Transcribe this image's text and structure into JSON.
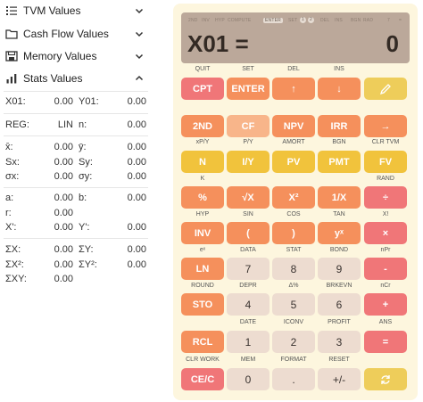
{
  "sidebar": {
    "sections": [
      {
        "id": "tvm",
        "title": "TVM Values",
        "icon": "chevron-down-icon",
        "expanded": false
      },
      {
        "id": "cashflow",
        "title": "Cash Flow Values",
        "icon": "chevron-down-icon",
        "expanded": false
      },
      {
        "id": "memory",
        "title": "Memory Values",
        "icon": "chevron-down-icon",
        "expanded": false
      },
      {
        "id": "stats",
        "title": "Stats Values",
        "icon": "chevron-up-icon",
        "expanded": true
      }
    ],
    "stats": {
      "x01": {
        "label": "X01:",
        "value": "0.00"
      },
      "y01": {
        "label": "Y01:",
        "value": "0.00"
      },
      "reg": {
        "label": "REG:",
        "value": "LIN"
      },
      "n": {
        "label": "n:",
        "value": "0.00"
      },
      "xbar": {
        "label": "x̄:",
        "value": "0.00"
      },
      "ybar": {
        "label": "ȳ:",
        "value": "0.00"
      },
      "sx": {
        "label": "Sx:",
        "value": "0.00"
      },
      "sy": {
        "label": "Sy:",
        "value": "0.00"
      },
      "sigx": {
        "label": "σx:",
        "value": "0.00"
      },
      "sigy": {
        "label": "σy:",
        "value": "0.00"
      },
      "a": {
        "label": "a:",
        "value": "0.00"
      },
      "b": {
        "label": "b:",
        "value": "0.00"
      },
      "r": {
        "label": "r:",
        "value": "0.00"
      },
      "xprime": {
        "label": "X':",
        "value": "0.00"
      },
      "yprime": {
        "label": "Y':",
        "value": "0.00"
      },
      "sumx": {
        "label": "ΣX:",
        "value": "0.00"
      },
      "sumy": {
        "label": "ΣY:",
        "value": "0.00"
      },
      "sumx2": {
        "label": "ΣX²:",
        "value": "0.00"
      },
      "sumy2": {
        "label": "ΣY²:",
        "value": "0.00"
      },
      "sumxy": {
        "label": "ΣXY:",
        "value": "0.00"
      }
    }
  },
  "calculator": {
    "indicators": [
      "2ND",
      "INV",
      "HYP",
      "COMPUTE",
      "ENTER",
      "SET",
      "1",
      "2",
      "DEL",
      "INS",
      "BGN",
      "RAD",
      "7",
      "="
    ],
    "active_indicator": "ENTER",
    "display": {
      "label": "X01 =",
      "value": "0"
    },
    "rows": [
      {
        "labels": [
          "QUIT",
          "SET",
          "DEL",
          "INS",
          ""
        ],
        "keys": [
          {
            "t": "CPT",
            "c": "pink"
          },
          {
            "t": "ENTER",
            "c": "orange"
          },
          {
            "t": "↑",
            "c": "orange"
          },
          {
            "t": "↓",
            "c": "orange"
          },
          {
            "t": "",
            "c": "mustard",
            "icon": "pen-icon"
          }
        ]
      },
      {
        "labels": [
          "",
          "",
          "",
          "",
          ""
        ],
        "keys": [
          {
            "t": "2ND",
            "c": "orange"
          },
          {
            "t": "CF",
            "c": "peach"
          },
          {
            "t": "NPV",
            "c": "orange"
          },
          {
            "t": "IRR",
            "c": "orange"
          },
          {
            "t": "→",
            "c": "orange"
          }
        ]
      },
      {
        "labels": [
          "xP/Y",
          "P/Y",
          "AMORT",
          "BGN",
          "CLR TVM"
        ],
        "keys": [
          {
            "t": "N",
            "c": "yellow"
          },
          {
            "t": "I/Y",
            "c": "yellow"
          },
          {
            "t": "PV",
            "c": "yellow"
          },
          {
            "t": "PMT",
            "c": "yellow"
          },
          {
            "t": "FV",
            "c": "yellow"
          }
        ]
      },
      {
        "labels": [
          "K",
          "",
          "",
          "",
          "RAND"
        ],
        "keys": [
          {
            "t": "%",
            "c": "orange"
          },
          {
            "t": "√X",
            "c": "orange"
          },
          {
            "t": "X²",
            "c": "orange"
          },
          {
            "t": "1/X",
            "c": "orange"
          },
          {
            "t": "÷",
            "c": "pink"
          }
        ]
      },
      {
        "labels": [
          "HYP",
          "SIN",
          "COS",
          "TAN",
          "X!"
        ],
        "keys": [
          {
            "t": "INV",
            "c": "orange"
          },
          {
            "t": "(",
            "c": "orange"
          },
          {
            "t": ")",
            "c": "orange"
          },
          {
            "t": "yˣ",
            "c": "orange"
          },
          {
            "t": "×",
            "c": "pink"
          }
        ]
      },
      {
        "labels": [
          "eˣ",
          "DATA",
          "STAT",
          "BOND",
          "nPr"
        ],
        "keys": [
          {
            "t": "LN",
            "c": "orange"
          },
          {
            "t": "7",
            "c": "beige"
          },
          {
            "t": "8",
            "c": "beige"
          },
          {
            "t": "9",
            "c": "beige"
          },
          {
            "t": "-",
            "c": "pink"
          }
        ]
      },
      {
        "labels": [
          "ROUND",
          "DEPR",
          "Δ%",
          "BRKEVN",
          "nCr"
        ],
        "keys": [
          {
            "t": "STO",
            "c": "orange"
          },
          {
            "t": "4",
            "c": "beige"
          },
          {
            "t": "5",
            "c": "beige"
          },
          {
            "t": "6",
            "c": "beige"
          },
          {
            "t": "+",
            "c": "pink"
          }
        ]
      },
      {
        "labels": [
          "",
          "DATE",
          "ICONV",
          "PROFIT",
          "ANS"
        ],
        "keys": [
          {
            "t": "RCL",
            "c": "orange"
          },
          {
            "t": "1",
            "c": "beige"
          },
          {
            "t": "2",
            "c": "beige"
          },
          {
            "t": "3",
            "c": "beige"
          },
          {
            "t": "=",
            "c": "pink"
          }
        ]
      },
      {
        "labels": [
          "CLR WORK",
          "MEM",
          "FORMAT",
          "RESET",
          ""
        ],
        "keys": [
          {
            "t": "CE/C",
            "c": "pink"
          },
          {
            "t": "0",
            "c": "beige"
          },
          {
            "t": ".",
            "c": "beige"
          },
          {
            "t": "+/-",
            "c": "beige"
          },
          {
            "t": "",
            "c": "mustard",
            "icon": "refresh-icon"
          }
        ]
      }
    ]
  }
}
